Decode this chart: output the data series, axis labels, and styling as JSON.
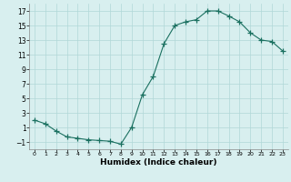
{
  "x": [
    0,
    1,
    2,
    3,
    4,
    5,
    6,
    7,
    8,
    9,
    10,
    11,
    12,
    13,
    14,
    15,
    16,
    17,
    18,
    19,
    20,
    21,
    22,
    23
  ],
  "y": [
    2.0,
    1.5,
    0.5,
    -0.3,
    -0.5,
    -0.7,
    -0.8,
    -0.9,
    -1.3,
    1.0,
    5.5,
    8.0,
    12.5,
    15.0,
    15.5,
    15.8,
    17.0,
    17.0,
    16.3,
    15.5,
    14.0,
    13.0,
    12.8,
    11.5
  ],
  "line_color": "#1a7060",
  "marker": "+",
  "marker_size": 4,
  "bg_color": "#d8efef",
  "grid_color": "#b0d8d8",
  "xlabel": "Humidex (Indice chaleur)",
  "xlim": [
    -0.5,
    23.5
  ],
  "ylim": [
    -2.0,
    18.0
  ],
  "yticks": [
    -1,
    1,
    3,
    5,
    7,
    9,
    11,
    13,
    15,
    17
  ],
  "xticks": [
    0,
    1,
    2,
    3,
    4,
    5,
    6,
    7,
    8,
    9,
    10,
    11,
    12,
    13,
    14,
    15,
    16,
    17,
    18,
    19,
    20,
    21,
    22,
    23
  ]
}
